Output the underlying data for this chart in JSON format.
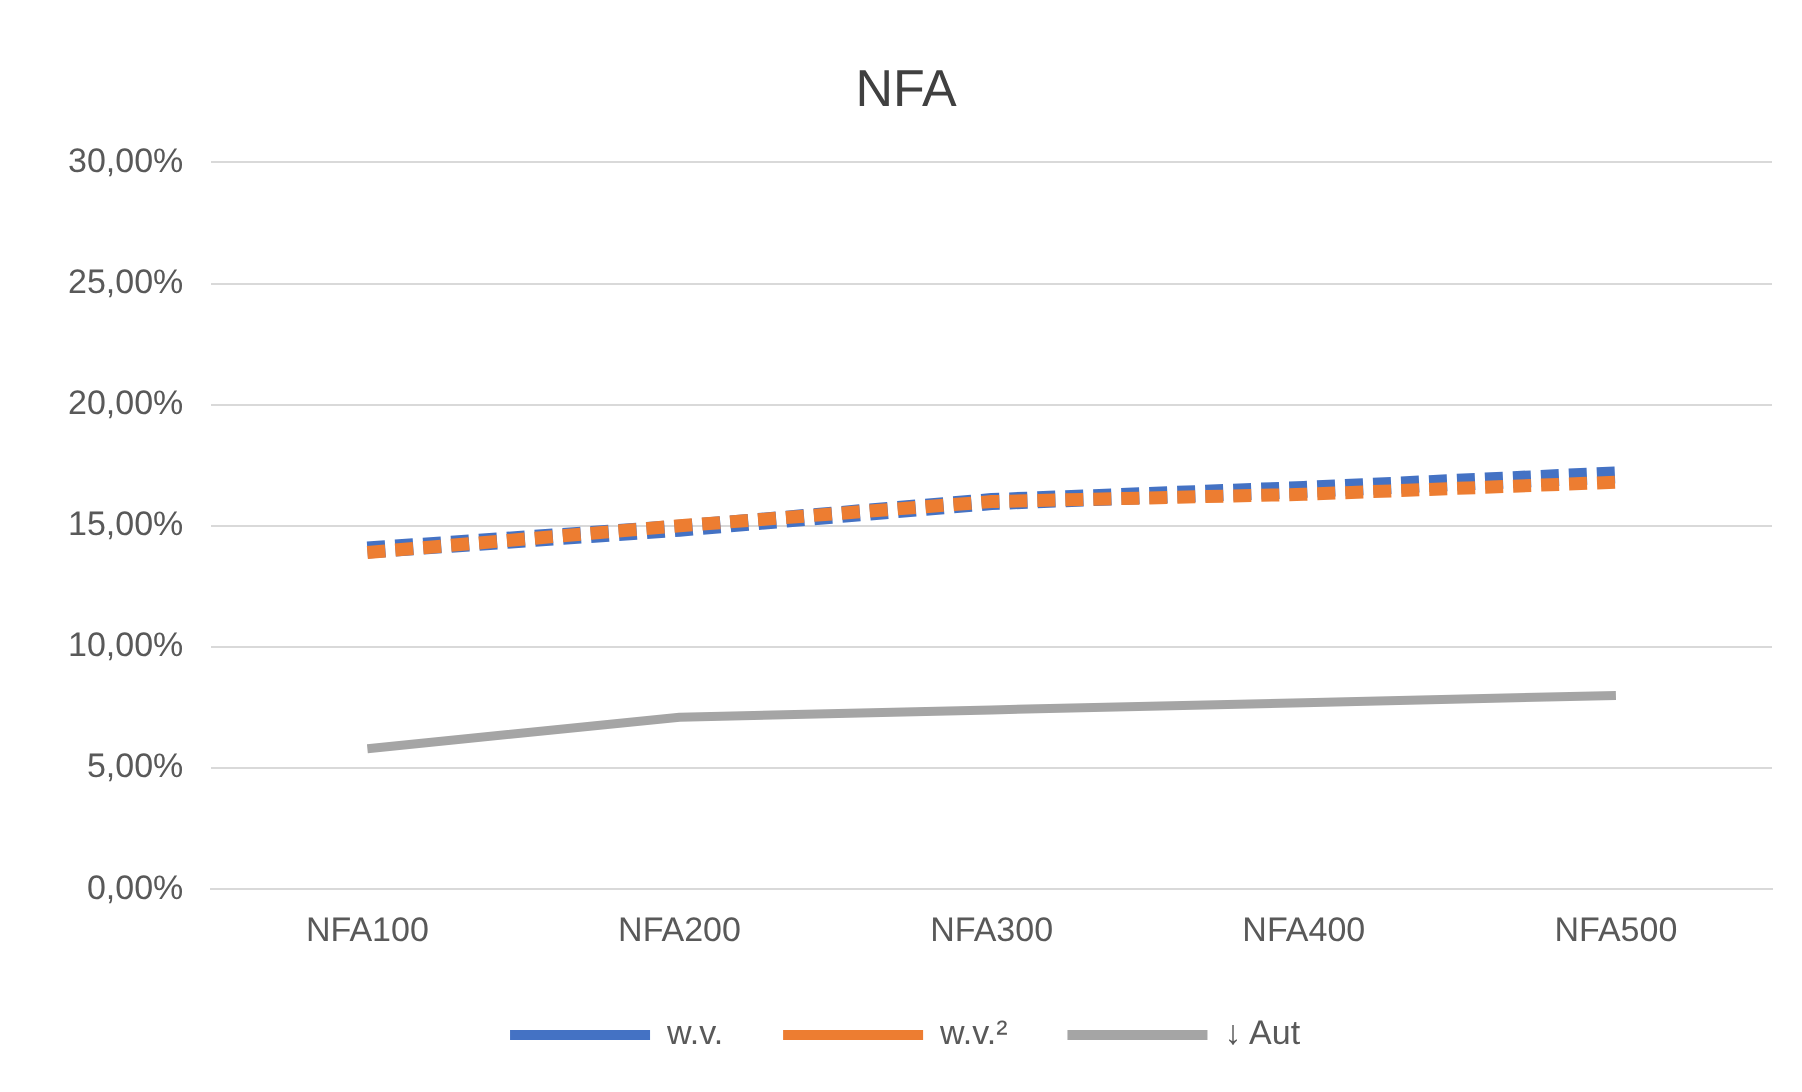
{
  "chart_data": {
    "type": "line",
    "title": "NFA",
    "categories": [
      "NFA100",
      "NFA200",
      "NFA300",
      "NFA400",
      "NFA500"
    ],
    "series": [
      {
        "name": "w.v.",
        "color": "#4472c4",
        "line_style": "dashed",
        "values": [
          14.0,
          14.9,
          16.0,
          16.5,
          17.1
        ]
      },
      {
        "name": "w.v.²",
        "color": "#ed7d31",
        "line_style": "dashed",
        "values": [
          13.9,
          15.0,
          16.0,
          16.3,
          16.8
        ]
      },
      {
        "name": "↓ Aut",
        "color": "#a5a5a5",
        "line_style": "solid",
        "values": [
          5.8,
          7.1,
          7.4,
          7.7,
          8.0
        ]
      }
    ],
    "ylim": [
      0,
      30
    ],
    "yticks": [
      {
        "value": 0,
        "label": "0,00%"
      },
      {
        "value": 5,
        "label": "5,00%"
      },
      {
        "value": 10,
        "label": "10,00%"
      },
      {
        "value": 15,
        "label": "15,00%"
      },
      {
        "value": 20,
        "label": "20,00%"
      },
      {
        "value": 25,
        "label": "25,00%"
      },
      {
        "value": 30,
        "label": "30,00%"
      }
    ],
    "grid": "y",
    "legend": "bottom",
    "marker": "none"
  }
}
